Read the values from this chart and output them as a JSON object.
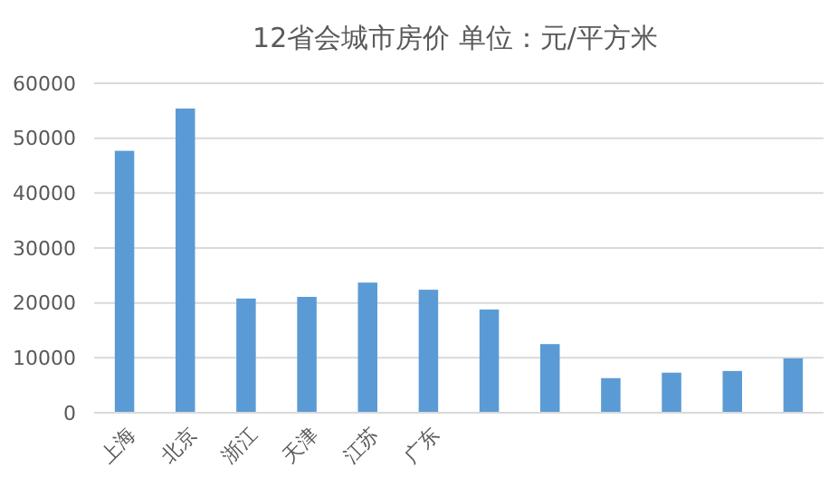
{
  "chart_data": {
    "type": "bar",
    "title": "12省会城市房价 单位：元/平方米",
    "categories": [
      "上海",
      "北京",
      "浙江",
      "天津",
      "江苏",
      "广东",
      null,
      null,
      null,
      null,
      null,
      null
    ],
    "values": [
      47700,
      55400,
      20800,
      21100,
      23700,
      22400,
      18800,
      12500,
      6300,
      7300,
      7600,
      9900
    ],
    "color": "#5b9bd5",
    "ylim": [
      0,
      60000
    ],
    "yticks": [
      0,
      10000,
      20000,
      30000,
      40000,
      50000,
      60000
    ],
    "grid": "y"
  }
}
